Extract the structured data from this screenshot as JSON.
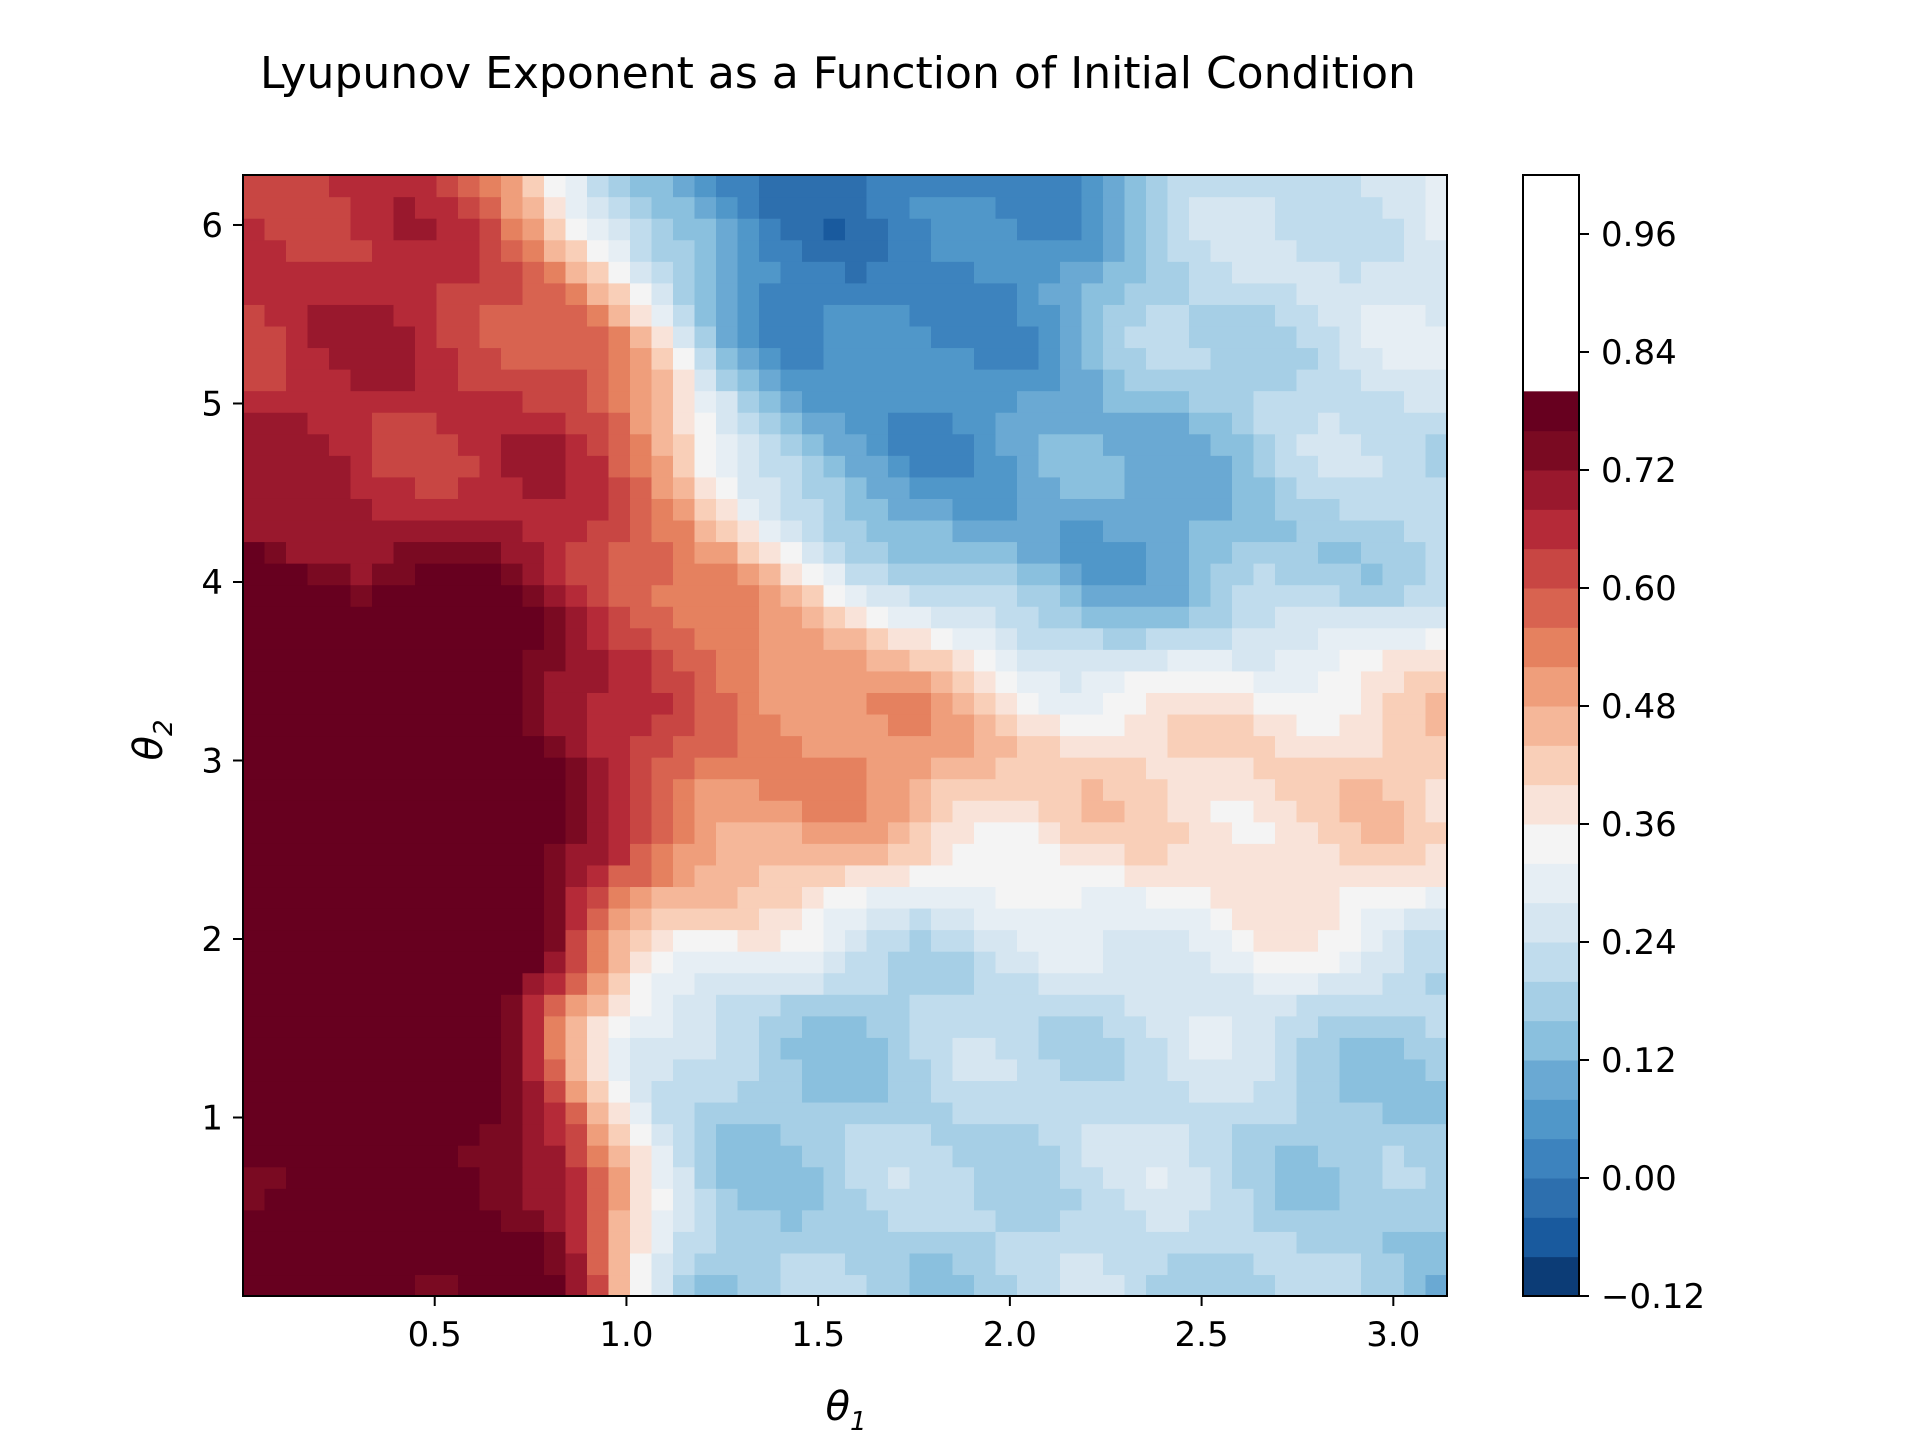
{
  "chart_data": {
    "type": "heatmap",
    "subtype": "filled-contour",
    "title": "Lyupunov Exponent as a Function of Initial Condition",
    "xlabel": "θ1",
    "ylabel": "θ2",
    "xlim": [
      0.0,
      3.14
    ],
    "ylim": [
      0.0,
      6.28
    ],
    "x_ticks": [
      {
        "value": 0.5,
        "label": "0.5"
      },
      {
        "value": 1.0,
        "label": "1.0"
      },
      {
        "value": 1.5,
        "label": "1.5"
      },
      {
        "value": 2.0,
        "label": "2.0"
      },
      {
        "value": 2.5,
        "label": "2.5"
      },
      {
        "value": 3.0,
        "label": "3.0"
      }
    ],
    "y_ticks": [
      {
        "value": 1,
        "label": "1"
      },
      {
        "value": 2,
        "label": "2"
      },
      {
        "value": 3,
        "label": "3"
      },
      {
        "value": 4,
        "label": "4"
      },
      {
        "value": 5,
        "label": "5"
      },
      {
        "value": 6,
        "label": "6"
      }
    ],
    "colorbar": {
      "colormap": "RdBu_r",
      "vmin": -0.12,
      "vmax": 1.02,
      "levels": [
        -0.12,
        -0.08,
        -0.04,
        0.0,
        0.04,
        0.08,
        0.12,
        0.16,
        0.2,
        0.24,
        0.28,
        0.32,
        0.36,
        0.4,
        0.44,
        0.48,
        0.52,
        0.56,
        0.6,
        0.64,
        0.68,
        0.72,
        0.76,
        0.8,
        0.84,
        0.88,
        0.92,
        0.96,
        1.0,
        1.02
      ],
      "colors": [
        "#0c3c76",
        "#195a9e",
        "#2d6fae",
        "#3d83be",
        "#5097c9",
        "#6aa9d3",
        "#8ac0de",
        "#a6cfe6",
        "#c0dced",
        "#d6e6f1",
        "#e6eef4",
        "#f4f4f4",
        "#f9e3d9",
        "#f9cfb8",
        "#f5b799",
        "#ef9e7b",
        "#e5815f",
        "#d86350",
        "#c84643",
        "#b52a38",
        "#99182d",
        "#7a0a22",
        "#67001f"
      ],
      "tick_labels": [
        {
          "value": -0.12,
          "label": "−0.12"
        },
        {
          "value": 0.0,
          "label": "0.00"
        },
        {
          "value": 0.12,
          "label": "0.12"
        },
        {
          "value": 0.24,
          "label": "0.24"
        },
        {
          "value": 0.36,
          "label": "0.36"
        },
        {
          "value": 0.48,
          "label": "0.48"
        },
        {
          "value": 0.6,
          "label": "0.60"
        },
        {
          "value": 0.72,
          "label": "0.72"
        },
        {
          "value": 0.84,
          "label": "0.84"
        },
        {
          "value": 0.96,
          "label": "0.96"
        }
      ]
    },
    "field_features": [
      {
        "region": "left edge, θ2 ≈ 2.4–3.3",
        "center": [
          0.25,
          2.85
        ],
        "value": 0.88
      },
      {
        "region": "left strip, θ2 ≈ 4.2–6.2",
        "center": [
          0.45,
          5.2
        ],
        "value": 0.66
      },
      {
        "region": "lower-left corner",
        "center": [
          0.1,
          0.45
        ],
        "value": 0.8
      },
      {
        "region": "red-white band",
        "center": [
          1.5,
          2.9
        ],
        "value": 0.56
      },
      {
        "region": "central basin",
        "center": [
          1.8,
          1.6
        ],
        "value": 0.12
      },
      {
        "region": "upper-middle trough",
        "center": [
          2.2,
          4.5
        ],
        "value": 0.06
      },
      {
        "region": "top-center trough",
        "center": [
          1.6,
          6.1
        ],
        "value": 0.0
      },
      {
        "region": "right light band",
        "center": [
          2.6,
          2.6
        ],
        "value": 0.42
      },
      {
        "region": "bottom-center",
        "center": [
          1.9,
          0.2
        ],
        "value": 0.16
      },
      {
        "region": "upper-right",
        "center": [
          2.8,
          5.3
        ],
        "value": 0.26
      },
      {
        "region": "lower-right",
        "center": [
          3.0,
          1.0
        ],
        "value": 0.14
      },
      {
        "region": "around basin",
        "center": [
          2.2,
          0.9
        ],
        "value": 0.3
      }
    ]
  }
}
